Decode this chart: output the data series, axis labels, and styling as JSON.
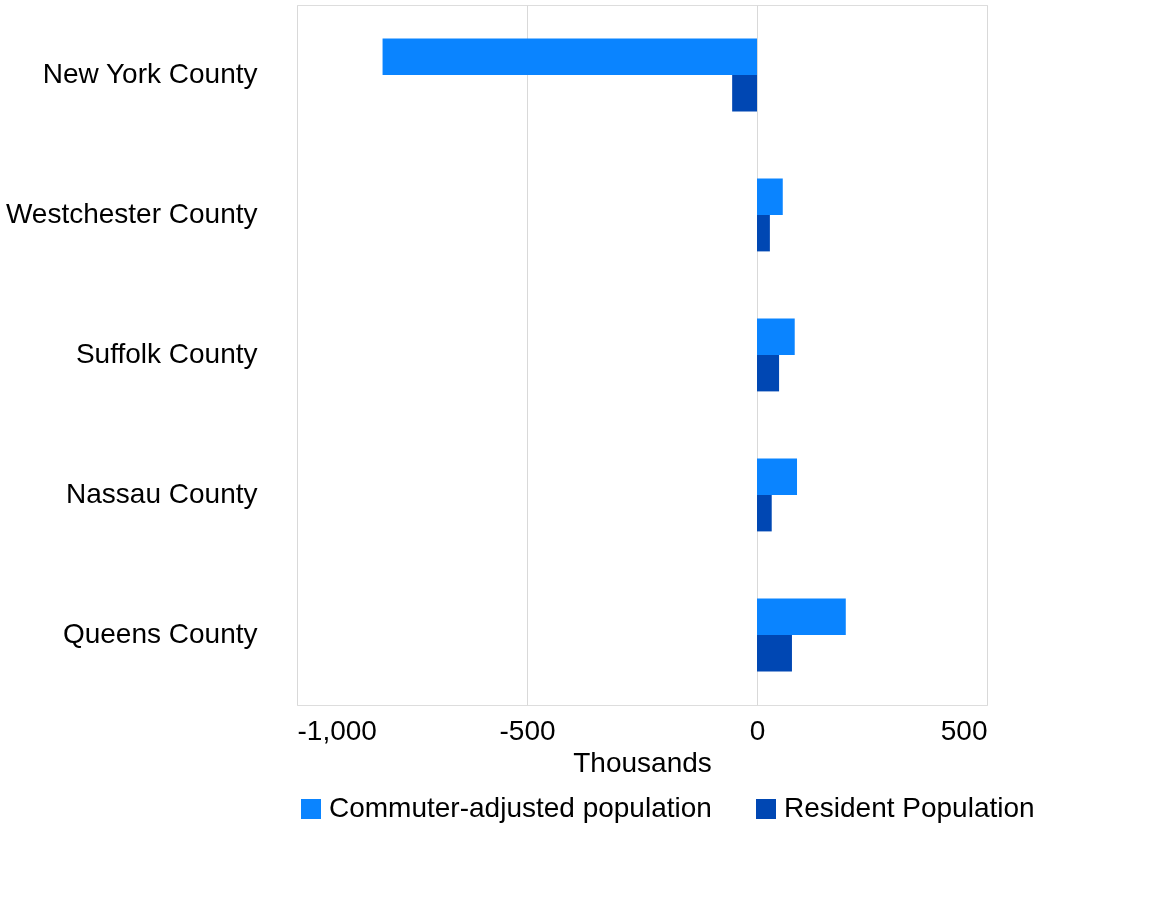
{
  "chart_data": {
    "type": "bar",
    "orientation": "horizontal",
    "xlabel": "Thousands",
    "categories": [
      "New York County",
      "Westchester County",
      "Suffolk County",
      "Nassau County",
      "Queens County"
    ],
    "series": [
      {
        "name": "Commuter-adjusted population",
        "color": "#0a84ff",
        "values": [
          -814,
          56,
          82,
          87,
          193
        ]
      },
      {
        "name": "Resident Population",
        "color": "#0047b3",
        "values": [
          -54,
          28,
          48,
          32,
          76
        ]
      }
    ],
    "xlim": [
      -1000,
      500
    ],
    "xticks": [
      {
        "value": -1000,
        "label": "-1,000"
      },
      -500,
      0,
      500
    ],
    "grid": "x",
    "legend": "bottom"
  }
}
